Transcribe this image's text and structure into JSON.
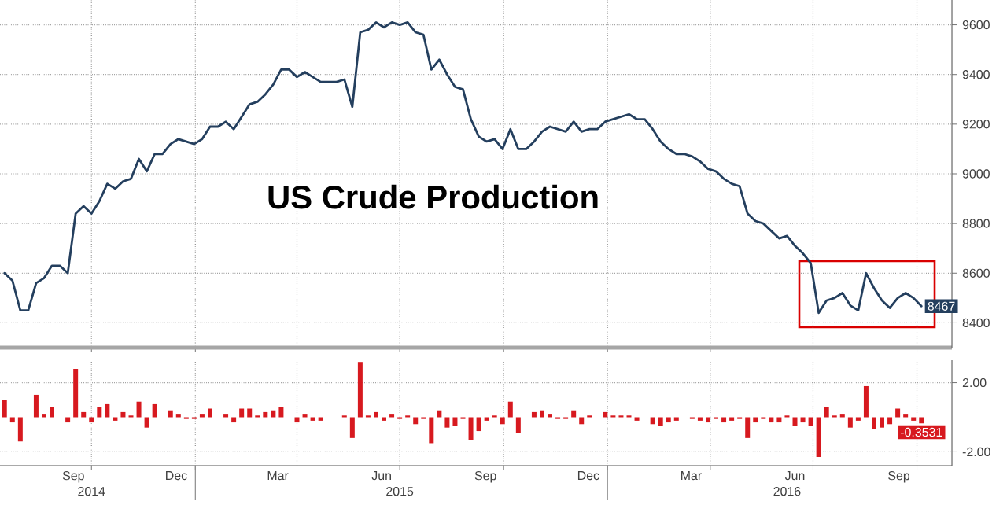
{
  "chart_data": [
    {
      "type": "line",
      "title": "US Crude Production",
      "x": [
        "2014-07-16",
        "2014-07-23",
        "2014-07-30",
        "2014-08-06",
        "2014-08-13",
        "2014-08-20",
        "2014-08-27",
        "2014-09-03",
        "2014-09-10",
        "2014-09-17",
        "2014-09-24",
        "2014-10-01",
        "2014-10-08",
        "2014-10-15",
        "2014-10-22",
        "2014-10-29",
        "2014-11-05",
        "2014-11-12",
        "2014-11-19",
        "2014-11-26",
        "2014-12-03",
        "2014-12-10",
        "2014-12-17",
        "2014-12-24",
        "2014-12-31",
        "2015-01-07",
        "2015-01-14",
        "2015-01-21",
        "2015-01-28",
        "2015-02-04",
        "2015-02-11",
        "2015-02-18",
        "2015-02-25",
        "2015-03-04",
        "2015-03-11",
        "2015-03-18",
        "2015-03-25",
        "2015-04-01",
        "2015-04-08",
        "2015-04-15",
        "2015-04-22",
        "2015-04-29",
        "2015-05-06",
        "2015-05-13",
        "2015-05-20",
        "2015-05-27",
        "2015-06-03",
        "2015-06-10",
        "2015-06-17",
        "2015-06-24",
        "2015-07-01",
        "2015-07-08",
        "2015-07-15",
        "2015-07-22",
        "2015-07-29",
        "2015-08-05",
        "2015-08-12",
        "2015-08-19",
        "2015-08-26",
        "2015-09-02",
        "2015-09-09",
        "2015-09-16",
        "2015-09-23",
        "2015-09-30",
        "2015-10-07",
        "2015-10-14",
        "2015-10-21",
        "2015-10-28",
        "2015-11-04",
        "2015-11-11",
        "2015-11-18",
        "2015-11-25",
        "2015-12-02",
        "2015-12-09",
        "2015-12-16",
        "2015-12-23",
        "2015-12-30",
        "2016-01-06",
        "2016-01-13",
        "2016-01-20",
        "2016-01-27",
        "2016-02-03",
        "2016-02-10",
        "2016-02-17",
        "2016-02-24",
        "2016-03-02",
        "2016-03-09",
        "2016-03-16",
        "2016-03-23",
        "2016-03-30",
        "2016-04-06",
        "2016-04-13",
        "2016-04-20",
        "2016-04-27",
        "2016-05-04",
        "2016-05-11",
        "2016-05-18",
        "2016-05-25",
        "2016-06-01",
        "2016-06-08",
        "2016-06-15",
        "2016-06-22",
        "2016-06-29",
        "2016-07-06",
        "2016-07-13",
        "2016-07-20",
        "2016-07-27",
        "2016-08-03",
        "2016-08-10",
        "2016-08-17",
        "2016-08-24",
        "2016-08-31",
        "2016-09-07",
        "2016-09-14",
        "2016-09-21",
        "2016-09-28",
        "2016-10-05"
      ],
      "xlim": [
        "2014-07-12",
        "2016-11-01"
      ],
      "xticks": [
        {
          "value": "2014-10-01",
          "label": null
        },
        {
          "value": "2015-01-01",
          "label": null
        },
        {
          "value": "2015-04-01",
          "label": null
        },
        {
          "value": "2015-07-01",
          "label": null
        },
        {
          "value": "2015-10-01",
          "label": null
        },
        {
          "value": "2016-01-01",
          "label": null
        },
        {
          "value": "2016-04-01",
          "label": null
        },
        {
          "value": "2016-07-01",
          "label": null
        },
        {
          "value": "2016-10-01",
          "label": null
        }
      ],
      "ylim": [
        8300,
        9700
      ],
      "yticks": [
        8400,
        8600,
        8800,
        9000,
        9200,
        9400,
        9600
      ],
      "grid": true,
      "tick_labels": "y",
      "series": [
        {
          "color": "#243f5e",
          "values": [
            8600,
            8570,
            8450,
            8450,
            8560,
            8580,
            8630,
            8630,
            8600,
            8840,
            8870,
            8840,
            8890,
            8960,
            8940,
            8970,
            8980,
            9060,
            9010,
            9080,
            9080,
            9120,
            9140,
            9130,
            9120,
            9140,
            9190,
            9190,
            9210,
            9180,
            9230,
            9280,
            9290,
            9320,
            9360,
            9420,
            9420,
            9390,
            9410,
            9390,
            9370,
            9370,
            9370,
            9380,
            9270,
            9570,
            9580,
            9610,
            9590,
            9610,
            9600,
            9610,
            9570,
            9560,
            9420,
            9460,
            9400,
            9350,
            9340,
            9220,
            9150,
            9130,
            9140,
            9100,
            9180,
            9100,
            9100,
            9130,
            9170,
            9190,
            9180,
            9170,
            9210,
            9170,
            9180,
            9180,
            9210,
            9220,
            9230,
            9240,
            9220,
            9220,
            9180,
            9130,
            9100,
            9080,
            9080,
            9070,
            9050,
            9020,
            9010,
            8980,
            8960,
            8950,
            8840,
            8810,
            8800,
            8770,
            8740,
            8750,
            8710,
            8680,
            8640,
            8440,
            8490,
            8500,
            8520,
            8470,
            8450,
            8600,
            8540,
            8490,
            8460,
            8500,
            8520,
            8500,
            8467
          ],
          "value_labels": [
            null,
            null,
            null,
            null,
            null,
            null,
            null,
            null,
            null,
            null,
            null,
            null,
            null,
            null,
            null,
            null,
            null,
            null,
            null,
            null,
            null,
            null,
            null,
            null,
            null,
            null,
            null,
            null,
            null,
            null,
            null,
            null,
            null,
            null,
            null,
            null,
            null,
            null,
            null,
            null,
            null,
            null,
            null,
            null,
            null,
            null,
            null,
            null,
            null,
            null,
            null,
            null,
            null,
            null,
            null,
            null,
            null,
            null,
            null,
            null,
            null,
            null,
            null,
            null,
            null,
            null,
            null,
            null,
            null,
            null,
            null,
            null,
            null,
            null,
            null,
            null,
            null,
            null,
            null,
            null,
            null,
            null,
            null,
            null,
            null,
            null,
            null,
            null,
            null,
            null,
            null,
            null,
            null,
            null,
            null,
            null,
            null,
            null,
            null,
            null,
            null,
            null,
            null,
            null,
            null,
            null,
            null,
            null,
            null,
            null,
            null,
            null,
            null,
            null,
            null,
            null,
            "8467"
          ]
        }
      ]
    },
    {
      "type": "bar",
      "x": [
        "2014-07-16",
        "2014-07-23",
        "2014-07-30",
        "2014-08-06",
        "2014-08-13",
        "2014-08-20",
        "2014-08-27",
        "2014-09-03",
        "2014-09-10",
        "2014-09-17",
        "2014-09-24",
        "2014-10-01",
        "2014-10-08",
        "2014-10-15",
        "2014-10-22",
        "2014-10-29",
        "2014-11-05",
        "2014-11-12",
        "2014-11-19",
        "2014-11-26",
        "2014-12-03",
        "2014-12-10",
        "2014-12-17",
        "2014-12-24",
        "2014-12-31",
        "2015-01-07",
        "2015-01-14",
        "2015-01-21",
        "2015-01-28",
        "2015-02-04",
        "2015-02-11",
        "2015-02-18",
        "2015-02-25",
        "2015-03-04",
        "2015-03-11",
        "2015-03-18",
        "2015-03-25",
        "2015-04-01",
        "2015-04-08",
        "2015-04-15",
        "2015-04-22",
        "2015-04-29",
        "2015-05-06",
        "2015-05-13",
        "2015-05-20",
        "2015-05-27",
        "2015-06-03",
        "2015-06-10",
        "2015-06-17",
        "2015-06-24",
        "2015-07-01",
        "2015-07-08",
        "2015-07-15",
        "2015-07-22",
        "2015-07-29",
        "2015-08-05",
        "2015-08-12",
        "2015-08-19",
        "2015-08-26",
        "2015-09-02",
        "2015-09-09",
        "2015-09-16",
        "2015-09-23",
        "2015-09-30",
        "2015-10-07",
        "2015-10-14",
        "2015-10-21",
        "2015-10-28",
        "2015-11-04",
        "2015-11-11",
        "2015-11-18",
        "2015-11-25",
        "2015-12-02",
        "2015-12-09",
        "2015-12-16",
        "2015-12-23",
        "2015-12-30",
        "2016-01-06",
        "2016-01-13",
        "2016-01-20",
        "2016-01-27",
        "2016-02-03",
        "2016-02-10",
        "2016-02-17",
        "2016-02-24",
        "2016-03-02",
        "2016-03-09",
        "2016-03-16",
        "2016-03-23",
        "2016-03-30",
        "2016-04-06",
        "2016-04-13",
        "2016-04-20",
        "2016-04-27",
        "2016-05-04",
        "2016-05-11",
        "2016-05-18",
        "2016-05-25",
        "2016-06-01",
        "2016-06-08",
        "2016-06-15",
        "2016-06-22",
        "2016-06-29",
        "2016-07-06",
        "2016-07-13",
        "2016-07-20",
        "2016-07-27",
        "2016-08-03",
        "2016-08-10",
        "2016-08-17",
        "2016-08-24",
        "2016-08-31",
        "2016-09-07",
        "2016-09-14",
        "2016-09-21",
        "2016-09-28",
        "2016-10-05"
      ],
      "xlim": [
        "2014-07-12",
        "2016-11-01"
      ],
      "xticks": [
        {
          "value": "2014-10-01",
          "label": null
        },
        {
          "value": "2015-01-01",
          "label": null
        },
        {
          "value": "2015-04-01",
          "label": null
        },
        {
          "value": "2015-07-01",
          "label": null
        },
        {
          "value": "2015-10-01",
          "label": null
        },
        {
          "value": "2016-01-01",
          "label": null
        },
        {
          "value": "2016-04-01",
          "label": null
        },
        {
          "value": "2016-07-01",
          "label": null
        },
        {
          "value": "2016-10-01",
          "label": null
        },
        {
          "value": "2014-09-15",
          "label": "Sep"
        },
        {
          "value": "2014-12-15",
          "label": "Dec"
        },
        {
          "value": "2015-03-15",
          "label": "Mar"
        },
        {
          "value": "2015-06-15",
          "label": "Jun"
        },
        {
          "value": "2015-09-15",
          "label": "Sep"
        },
        {
          "value": "2015-12-15",
          "label": "Dec"
        },
        {
          "value": "2016-03-15",
          "label": "Mar"
        },
        {
          "value": "2016-06-15",
          "label": "Jun"
        },
        {
          "value": "2016-09-15",
          "label": "Sep"
        }
      ],
      "x2lim": [
        "2014-07-12",
        "2016-11-01"
      ],
      "x2ticks": [
        {
          "value": "2014-10-01",
          "label": "2014"
        },
        {
          "value": "2015-01-01",
          "label": null
        },
        {
          "value": "2015-07-01",
          "label": "2015"
        },
        {
          "value": "2016-01-01",
          "label": null
        },
        {
          "value": "2016-06-08",
          "label": "2016"
        }
      ],
      "ylim": [
        -2.8,
        3.3
      ],
      "yticks": [
        {
          "value": 2,
          "label": "2.00"
        },
        {
          "value": -2,
          "label": "-2.00"
        }
      ],
      "grid": true,
      "series": [
        {
          "color": "#d7191f",
          "values": [
            1.0,
            -0.3,
            -1.4,
            0.0,
            1.3,
            0.2,
            0.6,
            0.0,
            -0.3,
            2.8,
            0.3,
            -0.3,
            0.6,
            0.8,
            -0.2,
            0.3,
            0.1,
            0.9,
            -0.6,
            0.8,
            0.0,
            0.4,
            0.2,
            -0.1,
            -0.1,
            0.2,
            0.5,
            0.0,
            0.2,
            -0.3,
            0.5,
            0.5,
            0.1,
            0.3,
            0.4,
            0.6,
            0.0,
            -0.3,
            0.2,
            -0.2,
            -0.2,
            0.0,
            0.0,
            0.1,
            -1.2,
            3.2,
            0.1,
            0.3,
            -0.2,
            0.2,
            -0.1,
            0.1,
            -0.4,
            -0.1,
            -1.5,
            0.4,
            -0.6,
            -0.5,
            -0.1,
            -1.3,
            -0.8,
            -0.2,
            0.1,
            -0.4,
            0.9,
            -0.9,
            0.0,
            0.3,
            0.4,
            0.2,
            -0.1,
            -0.1,
            0.4,
            -0.4,
            0.1,
            0.0,
            0.3,
            0.1,
            0.1,
            0.1,
            -0.2,
            0.0,
            -0.4,
            -0.5,
            -0.3,
            -0.2,
            0.0,
            -0.1,
            -0.2,
            -0.3,
            -0.1,
            -0.3,
            -0.2,
            -0.1,
            -1.2,
            -0.3,
            -0.1,
            -0.3,
            -0.3,
            0.1,
            -0.5,
            -0.3,
            -0.5,
            -2.3,
            0.6,
            0.1,
            0.2,
            -0.6,
            -0.2,
            1.8,
            -0.7,
            -0.6,
            -0.4,
            0.5,
            0.2,
            -0.2,
            -0.3531
          ],
          "value_labels": [
            null,
            null,
            null,
            null,
            null,
            null,
            null,
            null,
            null,
            null,
            null,
            null,
            null,
            null,
            null,
            null,
            null,
            null,
            null,
            null,
            null,
            null,
            null,
            null,
            null,
            null,
            null,
            null,
            null,
            null,
            null,
            null,
            null,
            null,
            null,
            null,
            null,
            null,
            null,
            null,
            null,
            null,
            null,
            null,
            null,
            null,
            null,
            null,
            null,
            null,
            null,
            null,
            null,
            null,
            null,
            null,
            null,
            null,
            null,
            null,
            null,
            null,
            null,
            null,
            null,
            null,
            null,
            null,
            null,
            null,
            null,
            null,
            null,
            null,
            null,
            null,
            null,
            null,
            null,
            null,
            null,
            null,
            null,
            null,
            null,
            null,
            null,
            null,
            null,
            null,
            null,
            null,
            null,
            null,
            null,
            null,
            null,
            null,
            null,
            null,
            null,
            null,
            null,
            null,
            null,
            null,
            null,
            null,
            null,
            null,
            null,
            null,
            null,
            null,
            null,
            null,
            "-0.3531"
          ]
        }
      ]
    }
  ]
}
